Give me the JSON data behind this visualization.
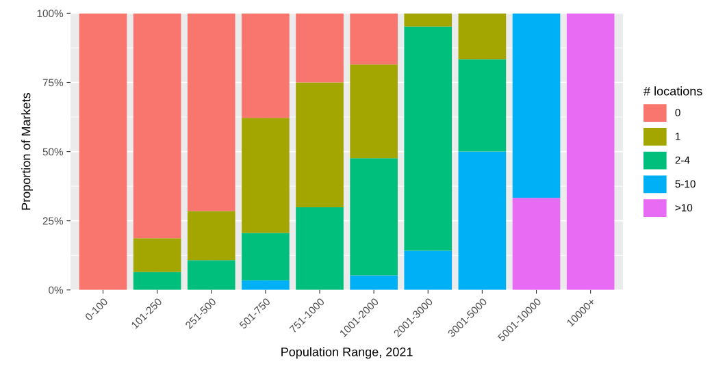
{
  "chart_data": {
    "type": "bar",
    "stacked": true,
    "xlabel": "Population Range, 2021",
    "ylabel": "Proportion of Markets",
    "legend_title": "# locations",
    "legend": "right",
    "grid": true,
    "categories": [
      "0-100",
      "101-250",
      "251-500",
      "501-750",
      "751-1000",
      "1001-2000",
      "2001-3000",
      "3001-5000",
      "5001-10000",
      "10000+"
    ],
    "ylim": [
      0,
      100
    ],
    "yticks": [
      {
        "value": 0,
        "label": "0%"
      },
      {
        "value": 25,
        "label": "25%"
      },
      {
        "value": 50,
        "label": "50%"
      },
      {
        "value": 75,
        "label": "75%"
      },
      {
        "value": 100,
        "label": "100%"
      }
    ],
    "series": [
      {
        "name": ">10",
        "color": "#e76bf3",
        "values": [
          0,
          0,
          0,
          0,
          0,
          0,
          0,
          0,
          33.3,
          100
        ]
      },
      {
        "name": "5-10",
        "color": "#00b0f6",
        "values": [
          0,
          0,
          0,
          3.5,
          0,
          5.3,
          14.2,
          50,
          66.7,
          0
        ]
      },
      {
        "name": "2-4",
        "color": "#00bf7d",
        "values": [
          0,
          6.5,
          10.8,
          17.1,
          29.9,
          42.3,
          81,
          33.4,
          0,
          0
        ]
      },
      {
        "name": "1",
        "color": "#a3a500",
        "values": [
          0,
          12.2,
          17.7,
          41.6,
          45.1,
          33.9,
          4.8,
          16.6,
          0,
          0
        ]
      },
      {
        "name": "0",
        "color": "#f8766d",
        "values": [
          100,
          81.3,
          71.5,
          37.8,
          25,
          18.5,
          0,
          0,
          0,
          0
        ]
      }
    ]
  }
}
